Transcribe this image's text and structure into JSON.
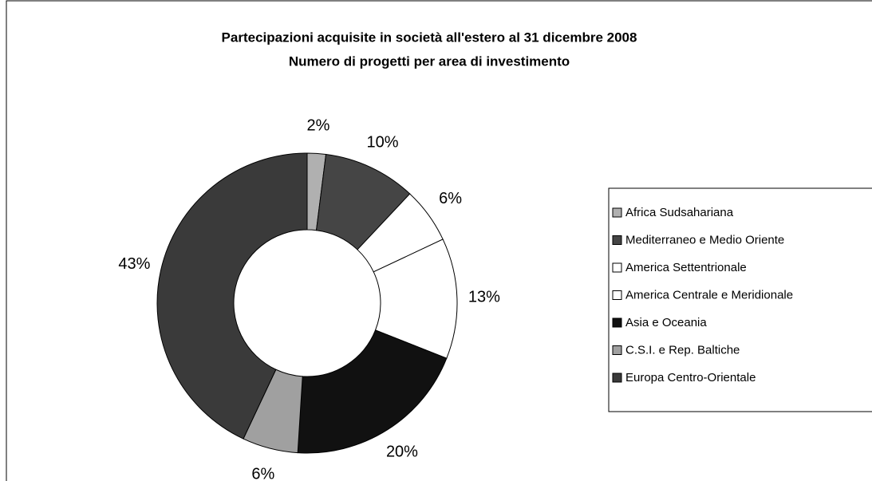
{
  "chart_data": {
    "type": "donut",
    "title": "Partecipazioni acquisite in società all'estero al 31 dicembre 2008",
    "subtitle": "Numero di progetti per area di investimento",
    "categories": [
      "Africa Sudsahariana",
      "Mediterraneo e Medio Oriente",
      "America Settentrionale",
      "America Centrale e Meridionale",
      "Asia e Oceania",
      "C.S.I. e Rep. Baltiche",
      "Europa Centro-Orientale"
    ],
    "values": [
      2,
      10,
      6,
      13,
      20,
      6,
      43
    ],
    "value_labels": [
      "2%",
      "10%",
      "6%",
      "13%",
      "20%",
      "6%",
      "43%"
    ],
    "colors": [
      "#b0b0b0",
      "#454545",
      "#ffffff",
      "#ffffff",
      "#111111",
      "#a0a0a0",
      "#3a3a3a"
    ]
  }
}
